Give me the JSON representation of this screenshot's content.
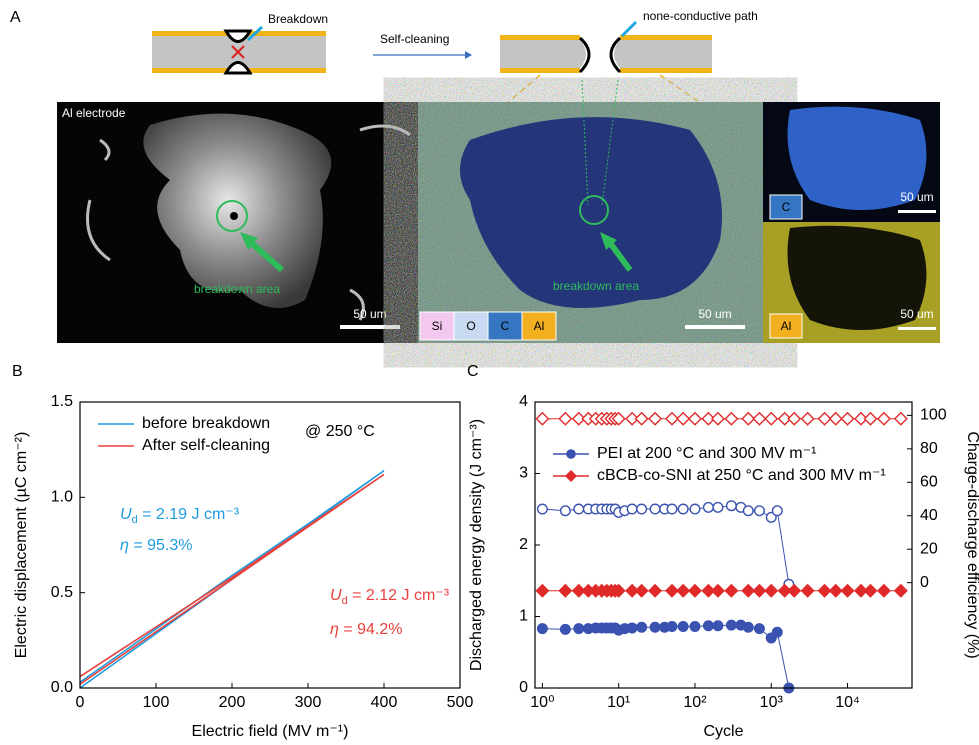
{
  "panel_a": {
    "label": "A",
    "schematic": {
      "breakdown": "Breakdown",
      "self_cleaning": "Self-cleaning",
      "path": "none-conductive path"
    },
    "sem": {
      "label": "Al electrode",
      "annotation": "breakdown area",
      "scale_bar": "50 um"
    },
    "eds": {
      "elements": [
        "Si",
        "O",
        "C",
        "Al"
      ],
      "annotation": "breakdown area",
      "scale_bar": "50 um"
    },
    "maps": [
      {
        "element": "C",
        "scale_bar": "50 um"
      },
      {
        "element": "Al",
        "scale_bar": "50 um"
      }
    ]
  },
  "chart_data": [
    {
      "type": "line",
      "panel_label": "B",
      "x_label": "Electric field (MV m⁻¹)",
      "y_label": "Electric displacement (µC cm⁻²)",
      "xlim": [
        0,
        500
      ],
      "xticks": [
        0,
        100,
        200,
        300,
        400,
        500
      ],
      "ylim": [
        0,
        1.5
      ],
      "yticks": [
        {
          "value": 0,
          "label": "0.0"
        },
        {
          "value": 0.5,
          "label": "0.5"
        },
        {
          "value": 1,
          "label": "1.0"
        },
        {
          "value": 1.5,
          "label": "1.5"
        }
      ],
      "legend": "upper left",
      "series": [
        {
          "name": "before breakdown",
          "color": "#1f9be0",
          "x": [
            0,
            100,
            200,
            300,
            400,
            300,
            200,
            100,
            0
          ],
          "values": [
            0,
            0.285,
            0.57,
            0.855,
            1.14,
            0.86,
            0.59,
            0.31,
            0.03
          ]
        },
        {
          "name": "After self-cleaning",
          "color": "#e8413c",
          "x": [
            0,
            100,
            200,
            300,
            400,
            300,
            200,
            100,
            0
          ],
          "values": [
            0.02,
            0.295,
            0.57,
            0.845,
            1.12,
            0.85,
            0.58,
            0.32,
            0.06
          ]
        }
      ],
      "annotations": [
        {
          "text": "@ 250 °C",
          "color": "#000000"
        },
        {
          "symbol": "U",
          "subscript": "d",
          "text": " = 2.19 J cm⁻³",
          "color": "#1f9be0"
        },
        {
          "symbol": "η",
          "text": " = 95.3%",
          "color": "#1f9be0"
        },
        {
          "symbol": "U",
          "subscript": "d",
          "text": " = 2.12 J cm⁻³",
          "color": "#e8413c"
        },
        {
          "symbol": "η",
          "text": " = 94.2%",
          "color": "#e8413c"
        }
      ]
    },
    {
      "type": "line",
      "panel_label": "C",
      "x_label": "Cycle",
      "y_label": "Discharged energy density (J cm⁻³)",
      "y2_label": "Charge-discharge efficiency (%)",
      "xscale": "log",
      "xlim": [
        0.8,
        70000
      ],
      "xticks": [
        {
          "value": 1,
          "label": "10⁰"
        },
        {
          "value": 10,
          "label": "10¹"
        },
        {
          "value": 100,
          "label": "10²"
        },
        {
          "value": 1000,
          "label": "10³"
        },
        {
          "value": 10000,
          "label": "10⁴"
        }
      ],
      "ylim": [
        0,
        4
      ],
      "yticks": [
        0,
        1,
        2,
        3,
        4
      ],
      "y2lim": [
        -63,
        108
      ],
      "y2ticks": [
        0,
        20,
        40,
        60,
        80,
        100
      ],
      "legend": "center left",
      "series": [
        {
          "name": "PEI at 200 °C and 300 MV m⁻¹",
          "color": "#3a52b0",
          "marker": "circle",
          "filled": true,
          "x": [
            1,
            2,
            3,
            4,
            5,
            6,
            7,
            8,
            9,
            10,
            12,
            15,
            20,
            30,
            40,
            50,
            70,
            100,
            150,
            200,
            300,
            400,
            500,
            700,
            1000,
            1200,
            1700
          ],
          "values": [
            0.83,
            0.82,
            0.83,
            0.83,
            0.84,
            0.84,
            0.84,
            0.84,
            0.84,
            0.81,
            0.83,
            0.84,
            0.85,
            0.85,
            0.85,
            0.86,
            0.86,
            0.86,
            0.87,
            0.87,
            0.88,
            0.88,
            0.85,
            0.83,
            0.7,
            0.78,
            0
          ]
        },
        {
          "color": "#3a52b0",
          "marker": "circle",
          "filled": false,
          "axis": "y2",
          "x": [
            1,
            2,
            3,
            4,
            5,
            6,
            7,
            8,
            9,
            10,
            12,
            15,
            20,
            30,
            40,
            50,
            70,
            100,
            150,
            200,
            300,
            400,
            500,
            700,
            1000,
            1200,
            1700
          ],
          "values": [
            44,
            43,
            44,
            44,
            44,
            44,
            44,
            44,
            44,
            42,
            43,
            44,
            44,
            44,
            44,
            44,
            44,
            44,
            45,
            45,
            46,
            45,
            43,
            43,
            39,
            43,
            -1
          ]
        },
        {
          "name": "cBCB-co-SNI at 250 °C and 300 MV m⁻¹",
          "color": "#e02a2a",
          "marker": "diamond",
          "filled": true,
          "x": [
            1,
            2,
            3,
            4,
            5,
            6,
            7,
            8,
            9,
            10,
            15,
            20,
            30,
            50,
            70,
            100,
            150,
            200,
            300,
            500,
            700,
            1000,
            1500,
            2000,
            3000,
            5000,
            7000,
            10000,
            15000,
            20000,
            30000,
            50000
          ],
          "values": [
            1.36,
            1.36,
            1.36,
            1.36,
            1.36,
            1.36,
            1.36,
            1.36,
            1.36,
            1.36,
            1.36,
            1.36,
            1.36,
            1.36,
            1.36,
            1.36,
            1.36,
            1.36,
            1.36,
            1.36,
            1.36,
            1.36,
            1.36,
            1.36,
            1.36,
            1.36,
            1.36,
            1.36,
            1.36,
            1.36,
            1.36,
            1.36
          ]
        },
        {
          "color": "#e02a2a",
          "marker": "diamond",
          "filled": false,
          "axis": "y2",
          "x": [
            1,
            2,
            3,
            4,
            5,
            6,
            7,
            8,
            9,
            10,
            15,
            20,
            30,
            50,
            70,
            100,
            150,
            200,
            300,
            500,
            700,
            1000,
            1500,
            2000,
            3000,
            5000,
            7000,
            10000,
            15000,
            20000,
            30000,
            50000
          ],
          "values": [
            98,
            98,
            98,
            98,
            98,
            98,
            98,
            98,
            98,
            98,
            98,
            98,
            98,
            98,
            98,
            98,
            98,
            98,
            98,
            98,
            98,
            98,
            98,
            98,
            98,
            98,
            98,
            98,
            98,
            98,
            98,
            98
          ]
        }
      ]
    }
  ]
}
